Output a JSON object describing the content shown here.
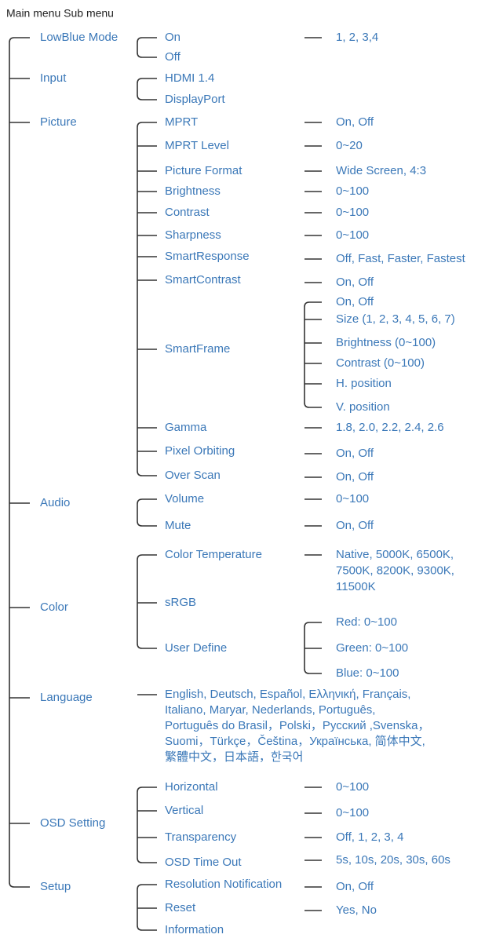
{
  "header": "Main menu Sub menu",
  "menus": [
    {
      "label": "LowBlue Mode",
      "items": [
        {
          "label": "On",
          "options": [
            "1, 2, 3,4"
          ]
        },
        {
          "label": "Off"
        }
      ]
    },
    {
      "label": "Input",
      "items": [
        {
          "label": "HDMI 1.4"
        },
        {
          "label": "DisplayPort"
        }
      ]
    },
    {
      "label": "Picture",
      "items": [
        {
          "label": "MPRT",
          "options": [
            "On, Off"
          ]
        },
        {
          "label": "MPRT Level",
          "options": [
            "0~20"
          ]
        },
        {
          "label": "Picture Format",
          "options": [
            "Wide Screen, 4:3"
          ]
        },
        {
          "label": "Brightness",
          "options": [
            "0~100"
          ]
        },
        {
          "label": "Contrast",
          "options": [
            "0~100"
          ]
        },
        {
          "label": "Sharpness",
          "options": [
            "0~100"
          ]
        },
        {
          "label": "SmartResponse",
          "options": [
            "Off, Fast, Faster, Fastest"
          ]
        },
        {
          "label": "SmartContrast",
          "options": [
            "On, Off"
          ]
        },
        {
          "label": "SmartFrame",
          "options": [
            "On, Off",
            "Size (1, 2, 3, 4, 5, 6, 7)",
            "Brightness (0~100)",
            "Contrast (0~100)",
            "H. position",
            "V. position"
          ]
        },
        {
          "label": "Gamma",
          "options": [
            "1.8, 2.0, 2.2, 2.4, 2.6"
          ]
        },
        {
          "label": "Pixel Orbiting",
          "options": [
            "On, Off"
          ]
        },
        {
          "label": "Over Scan",
          "options": [
            "On, Off"
          ]
        }
      ]
    },
    {
      "label": "Audio",
      "items": [
        {
          "label": "Volume",
          "options": [
            "0~100"
          ]
        },
        {
          "label": "Mute",
          "options": [
            "On, Off"
          ]
        }
      ]
    },
    {
      "label": "Color",
      "items": [
        {
          "label": "Color Temperature",
          "options": [
            [
              "Native, 5000K, 6500K,",
              "7500K, 8200K, 9300K,",
              "11500K"
            ]
          ]
        },
        {
          "label": "sRGB"
        },
        {
          "label": "User Define",
          "options": [
            "Red: 0~100",
            "Green: 0~100",
            "Blue: 0~100"
          ]
        }
      ]
    },
    {
      "label": "Language",
      "items": [
        {
          "label": [
            "English, Deutsch, Español, Ελληνική, Français,",
            "Italiano, Maryar, Nederlands, Português,",
            "Português do Brasil，Polski，Русский ,Svenska，",
            "Suomi，Türkçe，Čeština，Українська, 简体中文,",
            "繁體中文，日本語，한국어"
          ]
        }
      ]
    },
    {
      "label": "OSD Setting",
      "items": [
        {
          "label": "Horizontal",
          "options": [
            "0~100"
          ]
        },
        {
          "label": "Vertical",
          "options": [
            "0~100"
          ]
        },
        {
          "label": "Transparency",
          "options": [
            "Off, 1, 2, 3, 4"
          ]
        },
        {
          "label": "OSD Time Out",
          "options": [
            "5s, 10s, 20s, 30s, 60s"
          ]
        }
      ]
    },
    {
      "label": "Setup",
      "items": [
        {
          "label": "Resolution Notification",
          "options": [
            "On, Off"
          ]
        },
        {
          "label": "Reset",
          "options": [
            "Yes, No"
          ]
        },
        {
          "label": "Information"
        }
      ]
    }
  ]
}
